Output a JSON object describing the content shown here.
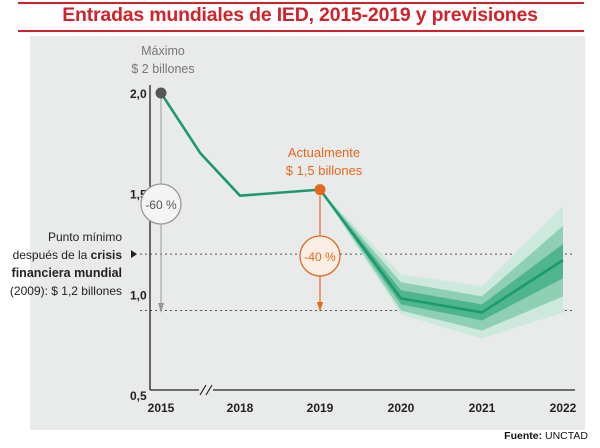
{
  "title": "Entradas mundiales de IED, 2015-2019 y previsiones",
  "source_label": "Fuente:",
  "source_name": "UNCTAD",
  "colors": {
    "title": "#d2232a",
    "line": "#1c9a6e",
    "band_outer": "#cde8dc",
    "band_mid": "#8fd0b4",
    "band_inner": "#4fb58f",
    "peak_marker": "#555555",
    "current_marker": "#e5681f",
    "current_text": "#e5681f",
    "panel": "#e9ebea"
  },
  "chart_data": {
    "type": "line",
    "title": "Entradas mundiales de IED, 2015-2019 y previsiones",
    "xlabel": "",
    "ylabel": "",
    "ylim": [
      0.5,
      2.0
    ],
    "x_ticks": [
      "2015",
      "2018",
      "2019",
      "2020",
      "2021",
      "2022"
    ],
    "y_ticks": [
      "0,5",
      "1,0",
      "1,5",
      "2,0"
    ],
    "axis_break": "//",
    "series": [
      {
        "name": "Historical",
        "points": [
          {
            "x": 0.0,
            "y": 2.0
          },
          {
            "x": 0.05,
            "y": 1.97
          },
          {
            "x": 0.5,
            "y": 1.7
          },
          {
            "x": 1.0,
            "y": 1.49
          },
          {
            "x": 2.0,
            "y": 1.52
          }
        ]
      },
      {
        "name": "Forecast",
        "points": [
          {
            "x": 2.0,
            "y": 1.52
          },
          {
            "x": 3.0,
            "y": 0.98
          },
          {
            "x": 4.0,
            "y": 0.91
          },
          {
            "x": 5.0,
            "y": 1.17
          }
        ],
        "bands": [
          {
            "name": "outer",
            "upper": [
              1.52,
              1.1,
              1.04,
              1.44
            ],
            "lower": [
              1.52,
              0.9,
              0.78,
              0.91
            ]
          },
          {
            "name": "mid",
            "upper": [
              1.52,
              1.06,
              0.99,
              1.34
            ],
            "lower": [
              1.52,
              0.92,
              0.82,
              0.99
            ]
          },
          {
            "name": "inner",
            "upper": [
              1.52,
              1.02,
              0.95,
              1.25
            ],
            "lower": [
              1.52,
              0.95,
              0.87,
              1.08
            ]
          }
        ]
      }
    ],
    "reference_lines": [
      {
        "name": "crisis-min",
        "y": 1.2
      },
      {
        "name": "current-level-low",
        "y": 0.92
      }
    ],
    "annotations": {
      "peak": {
        "x": 0,
        "y": 2.0,
        "label_line1": "Máximo",
        "label_line2": "$ 2 billones",
        "change": "-60 %"
      },
      "current": {
        "x": 2,
        "y": 1.52,
        "label_line1": "Actualmente",
        "label_line2": "$ 1,5 billones",
        "change": "-40 %"
      },
      "crisis": {
        "line1": "Punto mínimo",
        "line2_prefix": "después de la ",
        "line2_bold": "crisis",
        "line3_bold": "financiera mundial",
        "line4": "(2009): $ 1,2 billones"
      }
    }
  }
}
